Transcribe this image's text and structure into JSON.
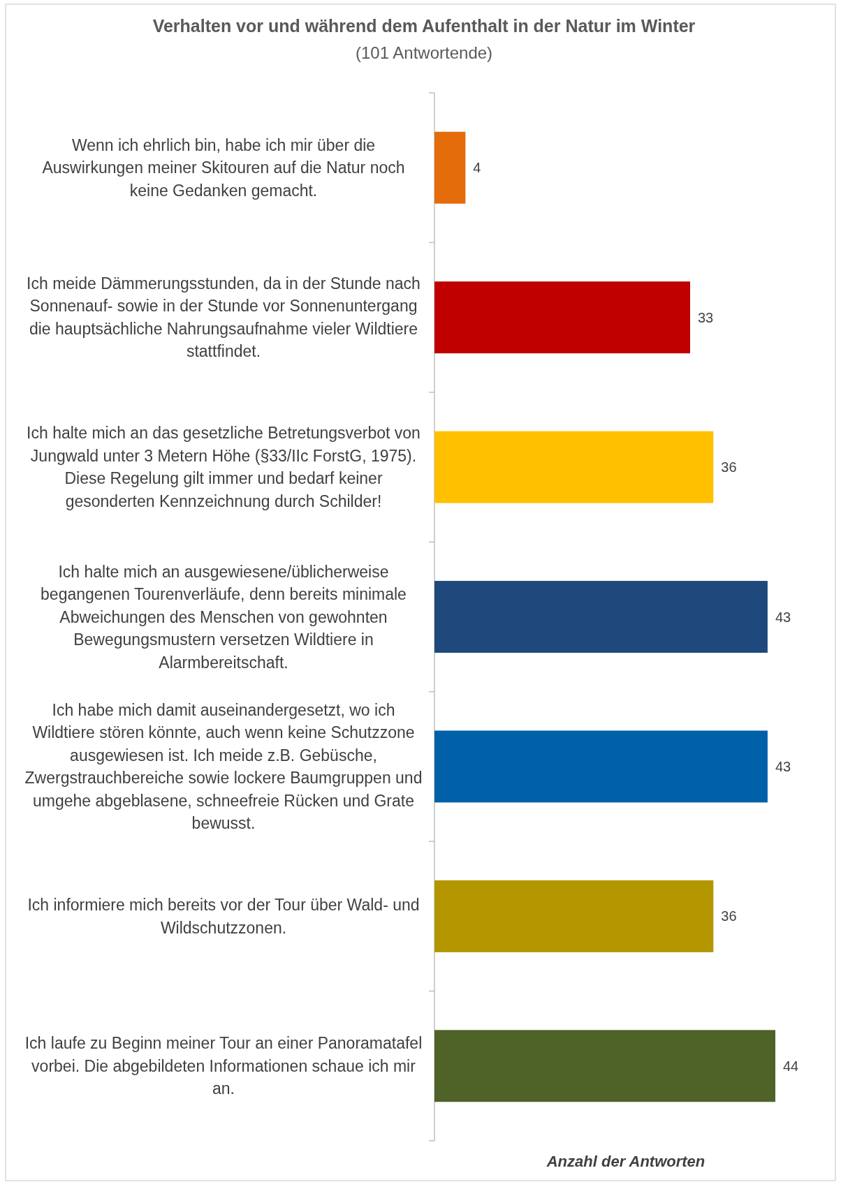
{
  "chart_data": {
    "type": "bar",
    "orientation": "horizontal",
    "title": "Verhalten vor und während dem Aufenthalt in der Natur im Winter",
    "subtitle": "(101 Antwortende)",
    "xlabel": "Anzahl der Antworten",
    "categories": [
      "Wenn ich ehrlich bin, habe ich mir über die Auswirkungen meiner Skitouren auf die Natur noch keine Gedanken gemacht.",
      "Ich meide Dämmerungsstunden, da in der Stunde nach Sonnenauf- sowie in der Stunde vor Sonnenuntergang die hauptsächliche Nahrungsaufnahme vieler Wildtiere stattfindet.",
      "Ich halte mich an das gesetzliche Betretungsverbot von Jungwald unter 3 Metern Höhe (§33/IIc ForstG, 1975). Diese Regelung gilt immer und bedarf keiner gesonderten Kennzeichnung durch Schilder!",
      "Ich halte mich an ausgewiesene/üblicherweise begangenen Tourenverläufe, denn bereits minimale Abweichungen des Menschen von gewohnten Bewegungsmustern versetzen Wildtiere in Alarmbereitschaft.",
      "Ich habe mich damit auseinandergesetzt, wo ich Wildtiere stören könnte, auch wenn keine Schutzzone ausgewiesen ist. Ich meide z.B. Gebüsche, Zwergstrauchbereiche sowie lockere Baumgruppen und umgehe abgeblasene, schneefreie Rücken und Grate bewusst.",
      "Ich informiere mich bereits vor der Tour über Wald- und Wildschutzzonen.",
      "Ich laufe zu Beginn meiner Tour an einer Panoramatafel vorbei. Die abgebildeten Informationen schaue ich mir an."
    ],
    "values": [
      4,
      33,
      36,
      43,
      43,
      36,
      44
    ],
    "colors": [
      "#e46c0a",
      "#c00000",
      "#ffc000",
      "#1f497d",
      "#0060a8",
      "#b39500",
      "#4f6228"
    ],
    "data_labels": true
  }
}
